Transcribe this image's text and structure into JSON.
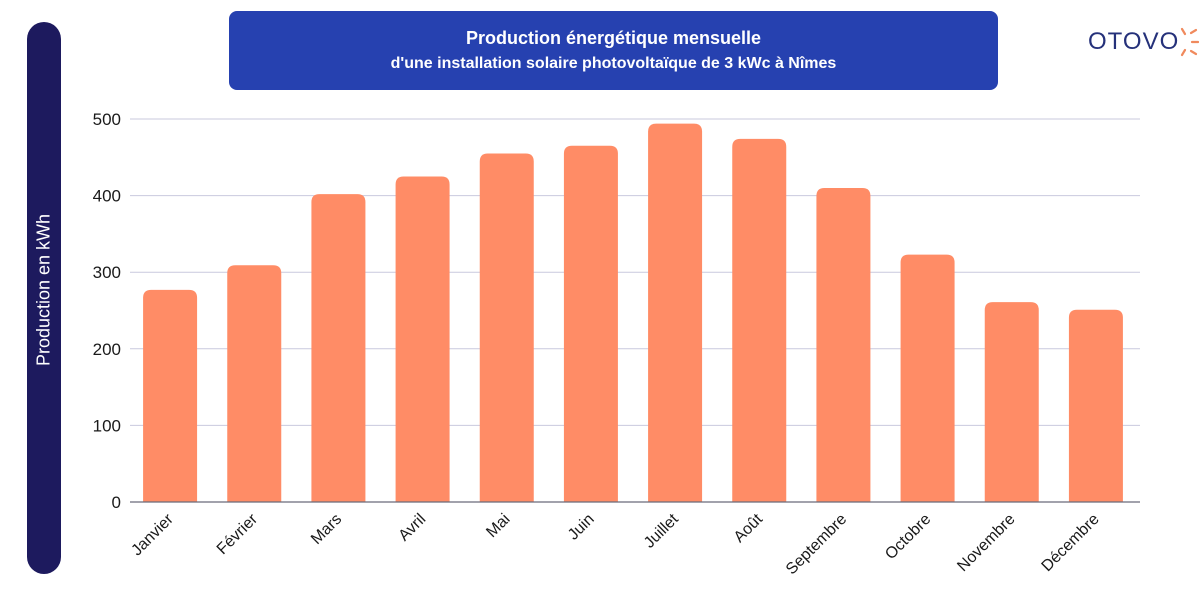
{
  "logo": {
    "text": "OTOVO",
    "accent_color": "#f08a5d",
    "brand_color": "#25317a"
  },
  "chart_data": {
    "type": "bar",
    "title": "Production énergétique mensuelle",
    "subtitle": "d'une installation solaire photovoltaïque de 3 kWc à Nîmes",
    "xlabel": "",
    "ylabel": "Production en kWh",
    "ylim": [
      0,
      500
    ],
    "yticks": [
      0,
      100,
      200,
      300,
      400,
      500
    ],
    "grid": true,
    "bar_color": "#ff8c66",
    "categories": [
      "Janvier",
      "Février",
      "Mars",
      "Avril",
      "Mai",
      "Juin",
      "Juillet",
      "Août",
      "Septembre",
      "Octobre",
      "Novembre",
      "Décembre"
    ],
    "values": [
      277,
      309,
      402,
      425,
      455,
      465,
      494,
      474,
      410,
      323,
      261,
      251
    ]
  }
}
